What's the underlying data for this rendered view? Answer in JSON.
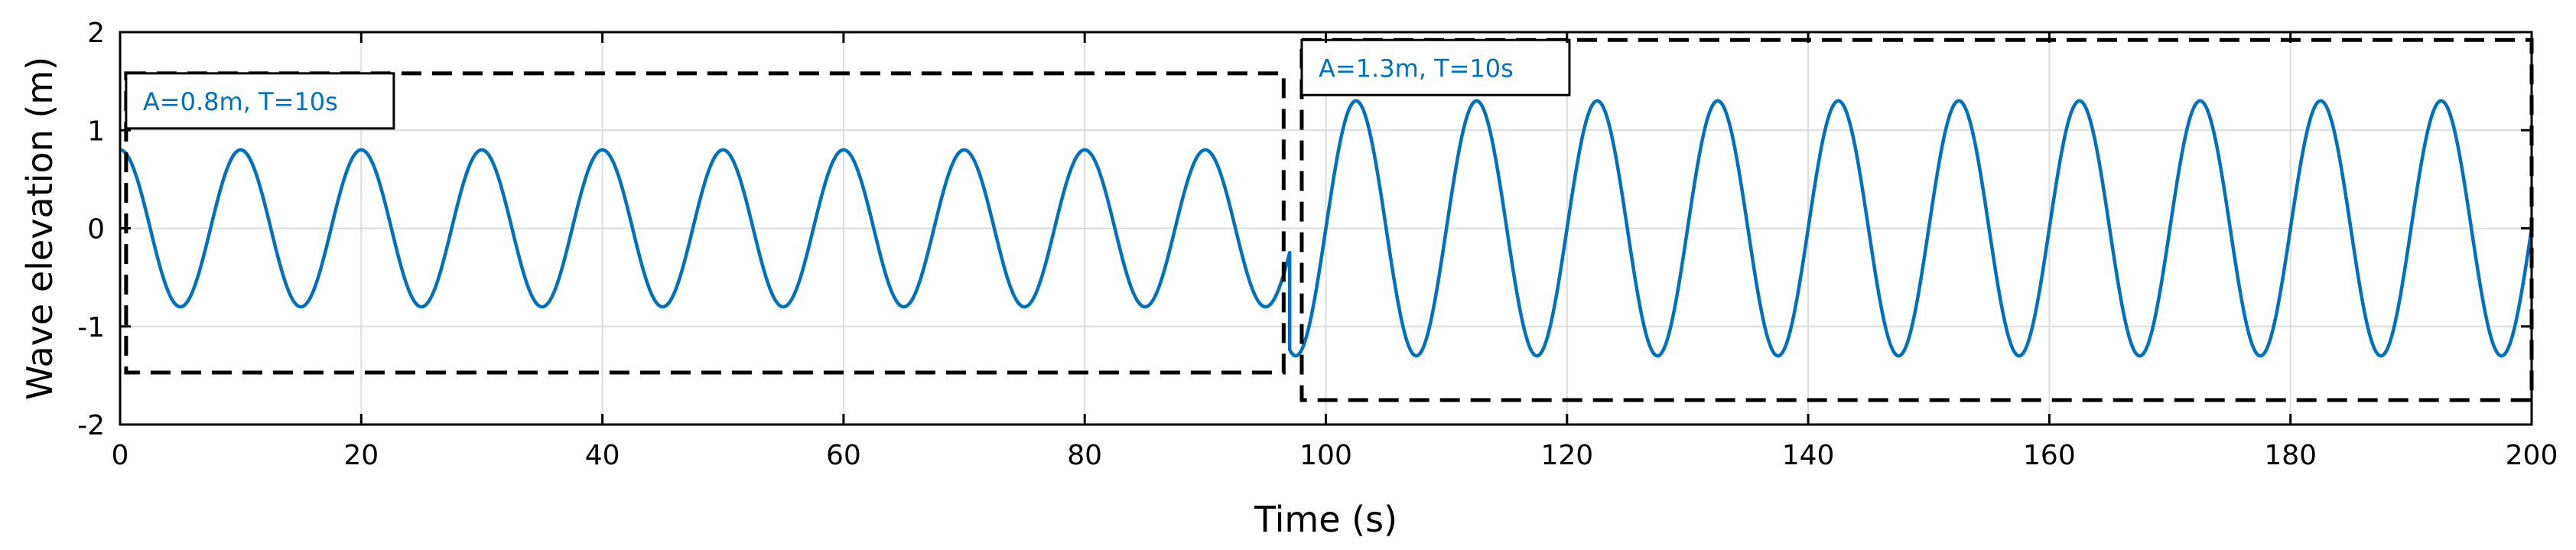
{
  "chart_data": {
    "type": "line",
    "xlabel": "Time (s)",
    "ylabel": "Wave elevation (m)",
    "xlim": [
      0,
      200
    ],
    "ylim": [
      -2,
      2
    ],
    "xticks": [
      0,
      20,
      40,
      60,
      80,
      100,
      120,
      140,
      160,
      180,
      200
    ],
    "yticks": [
      -2,
      -1,
      0,
      1,
      2
    ],
    "grid": true,
    "line_color": "#0072BD",
    "series": [
      {
        "segments": [
          {
            "t_start": 0,
            "t_end": 97,
            "amplitude": 0.8,
            "period": 10,
            "phase": "cosine"
          },
          {
            "t_start": 97,
            "t_end": 200,
            "amplitude": 1.3,
            "period": 10,
            "phase": "sine"
          }
        ]
      }
    ],
    "annotations": [
      {
        "text": "A=0.8m, T=10s",
        "region": {
          "x": [
            0.5,
            96.5
          ],
          "y": [
            -1.47,
            1.58
          ]
        }
      },
      {
        "text": "A=1.3m, T=10s",
        "region": {
          "x": [
            98,
            200
          ],
          "y": [
            -1.75,
            1.92
          ]
        }
      }
    ]
  }
}
